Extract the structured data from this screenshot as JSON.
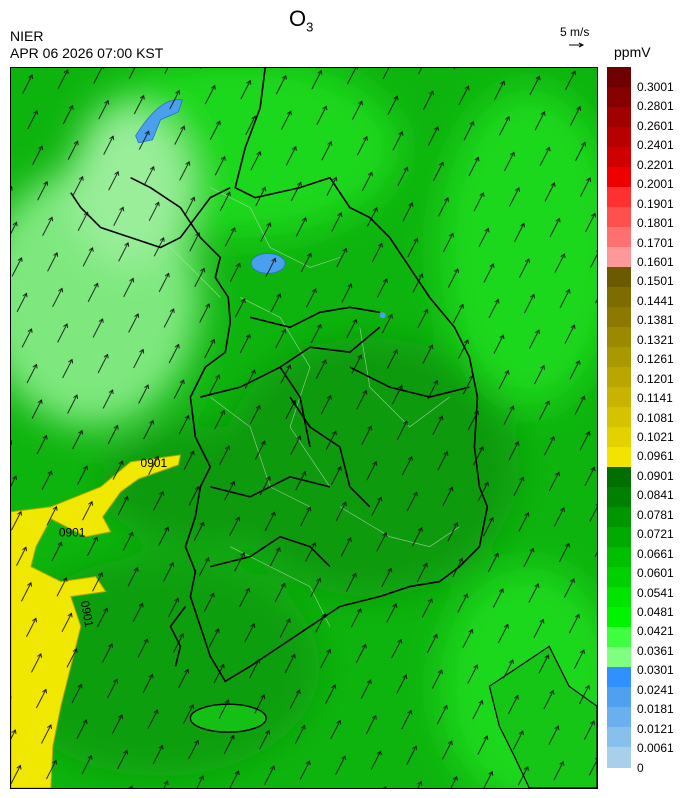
{
  "header": {
    "title_main": "O",
    "title_sub": "3",
    "agency": "NIER",
    "datetime": "APR 06 2026 07:00 KST",
    "wind_reference": "5 m/s",
    "units": "ppmV"
  },
  "contour_labels": [
    {
      "text": "0901",
      "rotate": 0
    },
    {
      "text": "0901",
      "rotate": 0
    },
    {
      "text": "0901",
      "rotate": 80
    }
  ],
  "legend": {
    "labels": [
      "0.3001",
      "0.2801",
      "0.2601",
      "0.2401",
      "0.2201",
      "0.2001",
      "0.1901",
      "0.1801",
      "0.1701",
      "0.1601",
      "0.1501",
      "0.1441",
      "0.1381",
      "0.1321",
      "0.1261",
      "0.1201",
      "0.1141",
      "0.1081",
      "0.1021",
      "0.0961",
      "0.0901",
      "0.0841",
      "0.0781",
      "0.0721",
      "0.0661",
      "0.0601",
      "0.0541",
      "0.0481",
      "0.0421",
      "0.0361",
      "0.0301",
      "0.0241",
      "0.0181",
      "0.0121",
      "0.0061",
      "0"
    ],
    "colors": [
      "#6e0000",
      "#860000",
      "#a00000",
      "#b80000",
      "#d00000",
      "#ee0000",
      "#ff3030",
      "#ff5050",
      "#ff7070",
      "#ff9898",
      "#6b5a00",
      "#7d6c00",
      "#8c7a00",
      "#9b8900",
      "#aa9800",
      "#b9a600",
      "#c8b400",
      "#d6c300",
      "#e4d200",
      "#f2e300",
      "#006e00",
      "#008000",
      "#009600",
      "#00aa00",
      "#00be00",
      "#00d000",
      "#00e400",
      "#00f400",
      "#40ff40",
      "#80ff80",
      "#3090ff",
      "#50a0f0",
      "#6ab0ee",
      "#88c0ec",
      "#a8d0ec"
    ]
  },
  "colors": {
    "land_green": "#10b810",
    "dark_green": "#0a9a0a",
    "light_green": "#88f088",
    "yellow": "#f0e800",
    "blue": "#4aa0ee"
  },
  "icons": [
    "wind-vector-icon",
    "coastline-icon"
  ]
}
